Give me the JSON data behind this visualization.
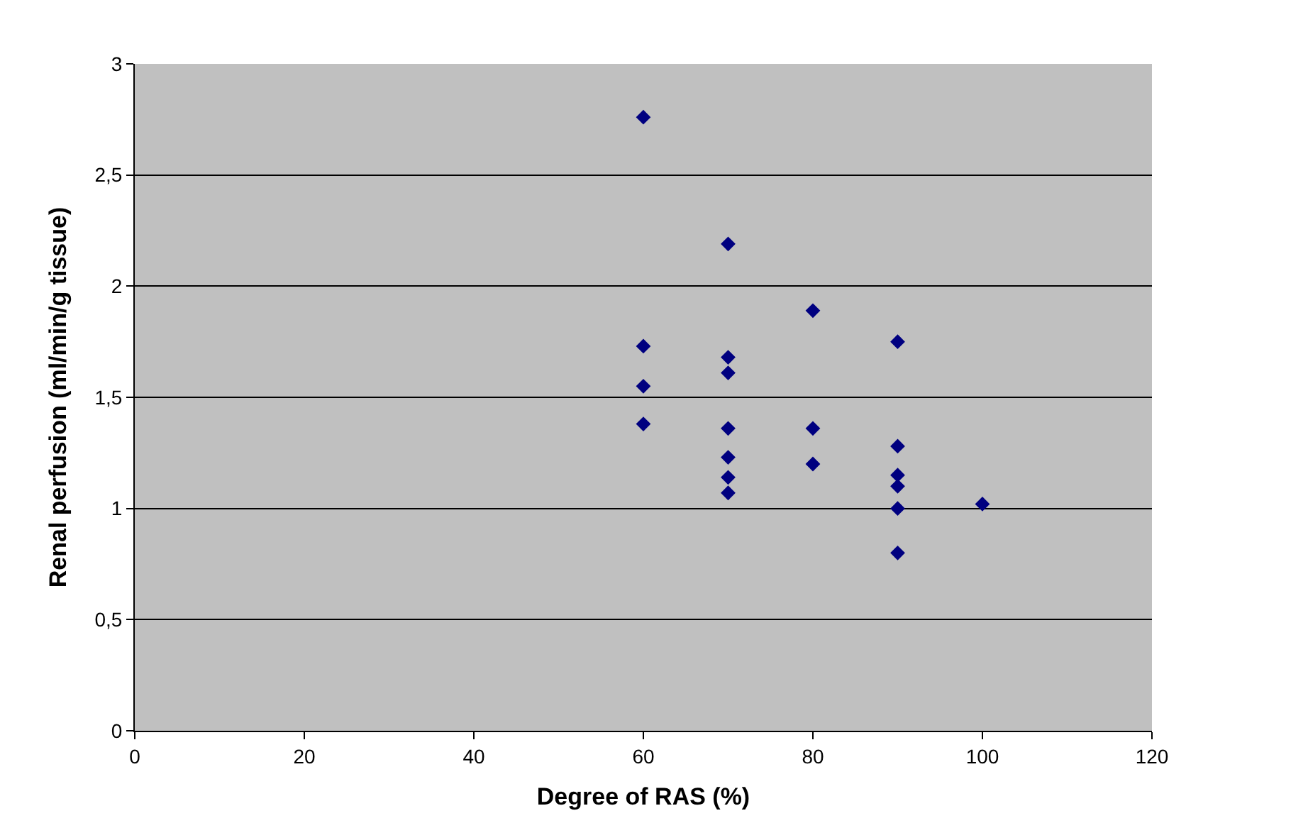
{
  "chart_data": {
    "type": "scatter",
    "xlabel": "Degree of RAS (%)",
    "ylabel": "Renal perfusion (ml/min/g tissue)",
    "x": [
      60,
      60,
      60,
      60,
      70,
      70,
      70,
      70,
      70,
      70,
      70,
      80,
      80,
      80,
      90,
      90,
      90,
      90,
      90,
      90,
      100
    ],
    "series": [
      {
        "color": "#000080",
        "values": [
          2.76,
          1.73,
          1.55,
          1.38,
          2.19,
          1.68,
          1.61,
          1.36,
          1.23,
          1.14,
          1.07,
          1.89,
          1.36,
          1.2,
          1.75,
          1.28,
          1.15,
          1.1,
          1.0,
          0.8,
          1.02
        ]
      }
    ],
    "xlim": [
      0,
      120
    ],
    "xticks": [
      0,
      20,
      40,
      60,
      80,
      100,
      120
    ],
    "ylim": [
      0,
      3
    ],
    "yticks": [
      0,
      {
        "value": 0.5,
        "label": "0,5"
      },
      1,
      {
        "value": 1.5,
        "label": "1,5"
      },
      2,
      {
        "value": 2.5,
        "label": "2,5"
      },
      3
    ],
    "grid": "y",
    "marker": "diamond"
  }
}
